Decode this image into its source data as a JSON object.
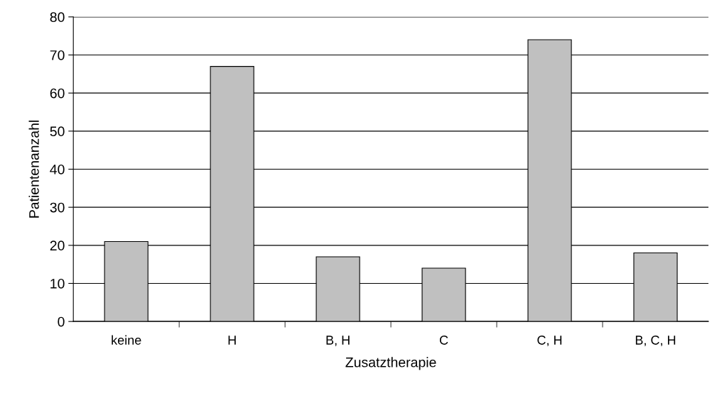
{
  "chart_data": {
    "type": "bar",
    "xlabel": "Zusatztherapie",
    "ylabel": "Patientenanzahl",
    "categories": [
      "keine",
      "H",
      "B, H",
      "C",
      "C, H",
      "B, C, H"
    ],
    "values": [
      21,
      67,
      17,
      14,
      74,
      18
    ],
    "color": "#c0c0c0",
    "ylim": [
      0,
      80
    ],
    "yticks": [
      0,
      10,
      20,
      30,
      40,
      50,
      60,
      70,
      80
    ],
    "grid": "y",
    "legend": false
  }
}
